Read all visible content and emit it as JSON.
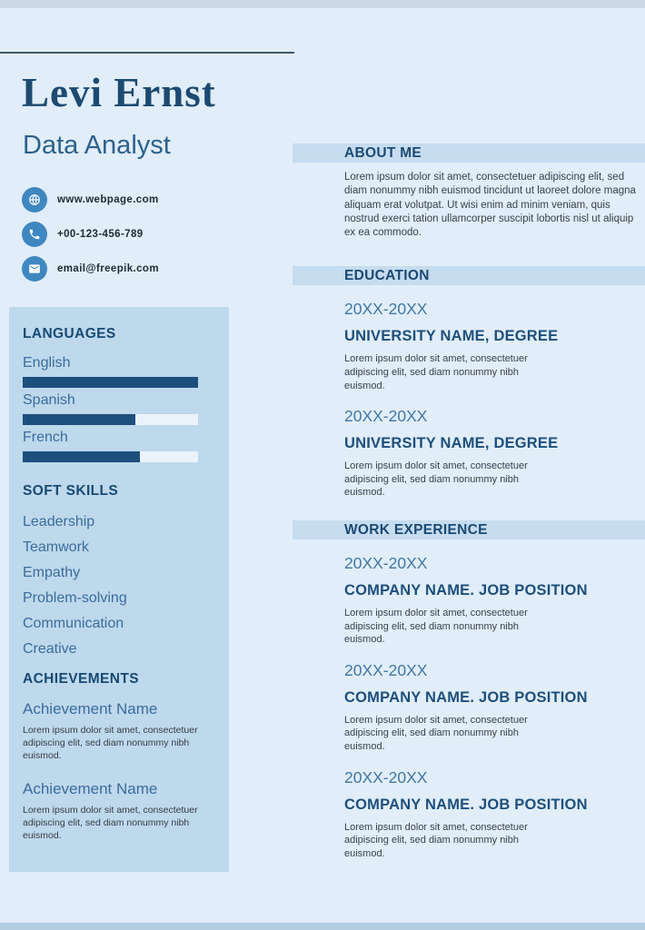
{
  "header": {
    "name": "Levi Ernst",
    "title": "Data Analyst"
  },
  "contact": {
    "items": [
      {
        "icon": "globe-icon",
        "value": "www.webpage.com"
      },
      {
        "icon": "phone-icon",
        "value": "+00-123-456-789"
      },
      {
        "icon": "email-icon",
        "value": "email@freepik.com"
      }
    ]
  },
  "sidebar": {
    "languages": {
      "title": "LANGUAGES",
      "items": [
        {
          "name": "English",
          "level": "100%"
        },
        {
          "name": "Spanish",
          "level": "64%"
        },
        {
          "name": "French",
          "level": "67%"
        }
      ]
    },
    "soft_skills": {
      "title": "SOFT SKILLS",
      "items": [
        "Leadership",
        "Teamwork",
        "Empathy",
        "Problem-solving",
        "Communication",
        "Creative"
      ]
    },
    "achievements": {
      "title": "ACHIEVEMENTS",
      "items": [
        {
          "name": "Achievement Name",
          "description": "Lorem ipsum dolor sit amet, consectetuer adipiscing elit, sed diam nonummy nibh euismod."
        },
        {
          "name": "Achievement Name",
          "description": "Lorem ipsum dolor sit amet, consectetuer adipiscing elit, sed diam nonummy nibh euismod."
        }
      ]
    }
  },
  "main": {
    "about": {
      "title": "ABOUT ME",
      "text": "Lorem ipsum dolor sit amet, consectetuer adipiscing elit, sed diam nonummy nibh euismod tincidunt ut laoreet dolore magna aliquam erat volutpat. Ut wisi enim ad minim veniam, quis nostrud exerci tation ullamcorper suscipit lobortis nisl ut aliquip ex ea commodo."
    },
    "education": {
      "title": "EDUCATION",
      "entries": [
        {
          "period": "20XX-20XX",
          "heading": "UNIVERSITY NAME, DEGREE",
          "description": "Lorem ipsum dolor sit amet, consectetuer adipiscing elit, sed diam nonummy nibh euismod."
        },
        {
          "period": "20XX-20XX",
          "heading": "UNIVERSITY NAME, DEGREE",
          "description": "Lorem ipsum dolor sit amet, consectetuer adipiscing elit, sed diam nonummy nibh euismod."
        }
      ]
    },
    "experience": {
      "title": "WORK EXPERIENCE",
      "entries": [
        {
          "period": "20XX-20XX",
          "heading": "COMPANY NAME. JOB POSITION",
          "description": "Lorem ipsum dolor sit amet, consectetuer adipiscing elit, sed diam nonummy nibh euismod."
        },
        {
          "period": "20XX-20XX",
          "heading": "COMPANY NAME. JOB POSITION",
          "description": "Lorem ipsum dolor sit amet, consectetuer adipiscing elit, sed diam nonummy nibh euismod."
        },
        {
          "period": "20XX-20XX",
          "heading": "COMPANY NAME. JOB POSITION",
          "description": "Lorem ipsum dolor sit amet, consectetuer adipiscing elit, sed diam nonummy nibh euismod."
        }
      ]
    }
  },
  "colors": {
    "background": "#e1edf8",
    "top_strip": "#ccd8e3",
    "bottom_strip": "#b4cce0",
    "accent_dark": "#1c4a71",
    "accent_medium": "#3a6d9c",
    "icon_circle": "#3f87c0",
    "sidebar_panel": "#bed8ec",
    "section_strip": "#c6dcef",
    "bar_fill": "#1c4f7c",
    "bar_track": "#eaf3fb",
    "body_text": "#39424b"
  }
}
